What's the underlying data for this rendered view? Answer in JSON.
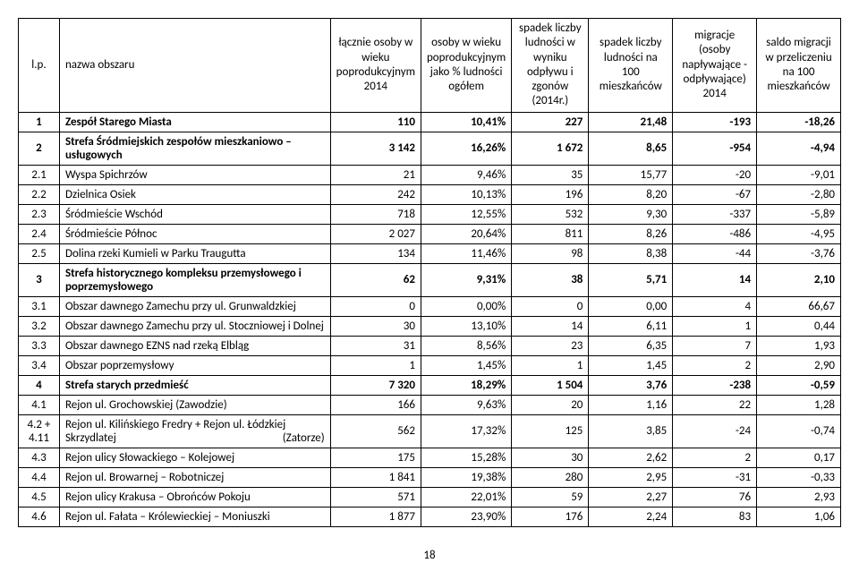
{
  "columns": {
    "lp": "l.p.",
    "name": "nazwa obszaru",
    "c1": "łącznie osoby w wieku poprodukcyjnym 2014",
    "c2": "osoby w wieku poprodukcyjnym jako % ludności ogółem",
    "c3": "spadek liczby ludności w wyniku odpływu i zgonów (2014r.)",
    "c4": "spadek liczby ludności na 100 mieszkańców",
    "c5": "migracje (osoby napływające - odpływające) 2014",
    "c6": "saldo migracji w przeliczeniu na 100 mieszkańców"
  },
  "rows": [
    {
      "lp": "1",
      "name": "Zespół Starego Miasta",
      "v": [
        "110",
        "10,41%",
        "227",
        "21,48",
        "-193",
        "-18,26"
      ],
      "bold": true
    },
    {
      "lp": "2",
      "name": "Strefa Śródmiejskich zespołów mieszkaniowo – usługowych",
      "v": [
        "3 142",
        "16,26%",
        "1 672",
        "8,65",
        "-954",
        "-4,94"
      ],
      "bold": true,
      "justify": true
    },
    {
      "lp": "2.1",
      "name": "Wyspa Spichrzów",
      "v": [
        "21",
        "9,46%",
        "35",
        "15,77",
        "-20",
        "-9,01"
      ]
    },
    {
      "lp": "2.2",
      "name": "Dzielnica Osiek",
      "v": [
        "242",
        "10,13%",
        "196",
        "8,20",
        "-67",
        "-2,80"
      ]
    },
    {
      "lp": "2.3",
      "name": "Śródmieście Wschód",
      "v": [
        "718",
        "12,55%",
        "532",
        "9,30",
        "-337",
        "-5,89"
      ]
    },
    {
      "lp": "2.4",
      "name": "Śródmieście Północ",
      "v": [
        "2 027",
        "20,64%",
        "811",
        "8,26",
        "-486",
        "-4,95"
      ]
    },
    {
      "lp": "2.5",
      "name": "Dolina rzeki Kumieli w Parku Traugutta",
      "v": [
        "134",
        "11,46%",
        "98",
        "8,38",
        "-44",
        "-3,76"
      ]
    },
    {
      "lp": "3",
      "name": "Strefa historycznego kompleksu przemysłowego i poprzemysłowego",
      "v": [
        "62",
        "9,31%",
        "38",
        "5,71",
        "14",
        "2,10"
      ],
      "bold": true,
      "justify": true
    },
    {
      "lp": "3.1",
      "name": "Obszar dawnego Zamechu przy ul. Grunwaldzkiej",
      "v": [
        "0",
        "0,00%",
        "0",
        "0,00",
        "4",
        "66,67"
      ]
    },
    {
      "lp": "3.2",
      "name": "Obszar dawnego Zamechu przy ul. Stoczniowej i Dolnej",
      "v": [
        "30",
        "13,10%",
        "14",
        "6,11",
        "1",
        "0,44"
      ]
    },
    {
      "lp": "3.3",
      "name": "Obszar dawnego EZNS nad rzeką Elbląg",
      "v": [
        "31",
        "8,56%",
        "23",
        "6,35",
        "7",
        "1,93"
      ]
    },
    {
      "lp": "3.4",
      "name": "Obszar poprzemysłowy",
      "v": [
        "1",
        "1,45%",
        "1",
        "1,45",
        "2",
        "2,90"
      ]
    },
    {
      "lp": "4",
      "name": "Strefa starych przedmieść",
      "v": [
        "7 320",
        "18,29%",
        "1 504",
        "3,76",
        "-238",
        "-0,59"
      ],
      "bold": true
    },
    {
      "lp": "4.1",
      "name": "Rejon ul. Grochowskiej (Zawodzie)",
      "v": [
        "166",
        "9,63%",
        "20",
        "1,16",
        "22",
        "1,28"
      ]
    },
    {
      "lp": "4.2 + 4.11",
      "name": "Rejon ul. Kilińskiego Fredry + Rejon ul. Łódzkiej Skrzydlatej (Zatorze)",
      "v": [
        "562",
        "17,32%",
        "125",
        "3,85",
        "-24",
        "-0,74"
      ],
      "justify": true
    },
    {
      "lp": "4.3",
      "name": "Rejon ulicy Słowackiego – Kolejowej",
      "v": [
        "175",
        "15,28%",
        "30",
        "2,62",
        "2",
        "0,17"
      ]
    },
    {
      "lp": "4.4",
      "name": "Rejon ul. Browarnej – Robotniczej",
      "v": [
        "1 841",
        "19,38%",
        "280",
        "2,95",
        "-31",
        "-0,33"
      ]
    },
    {
      "lp": "4.5",
      "name": "Rejon ulicy Krakusa – Obrońców Pokoju",
      "v": [
        "571",
        "22,01%",
        "59",
        "2,27",
        "76",
        "2,93"
      ]
    },
    {
      "lp": "4.6",
      "name": "Rejon ul. Fałata – Królewieckiej – Moniuszki",
      "v": [
        "1 877",
        "23,90%",
        "176",
        "2,24",
        "83",
        "1,06"
      ]
    }
  ],
  "page_number": "18"
}
